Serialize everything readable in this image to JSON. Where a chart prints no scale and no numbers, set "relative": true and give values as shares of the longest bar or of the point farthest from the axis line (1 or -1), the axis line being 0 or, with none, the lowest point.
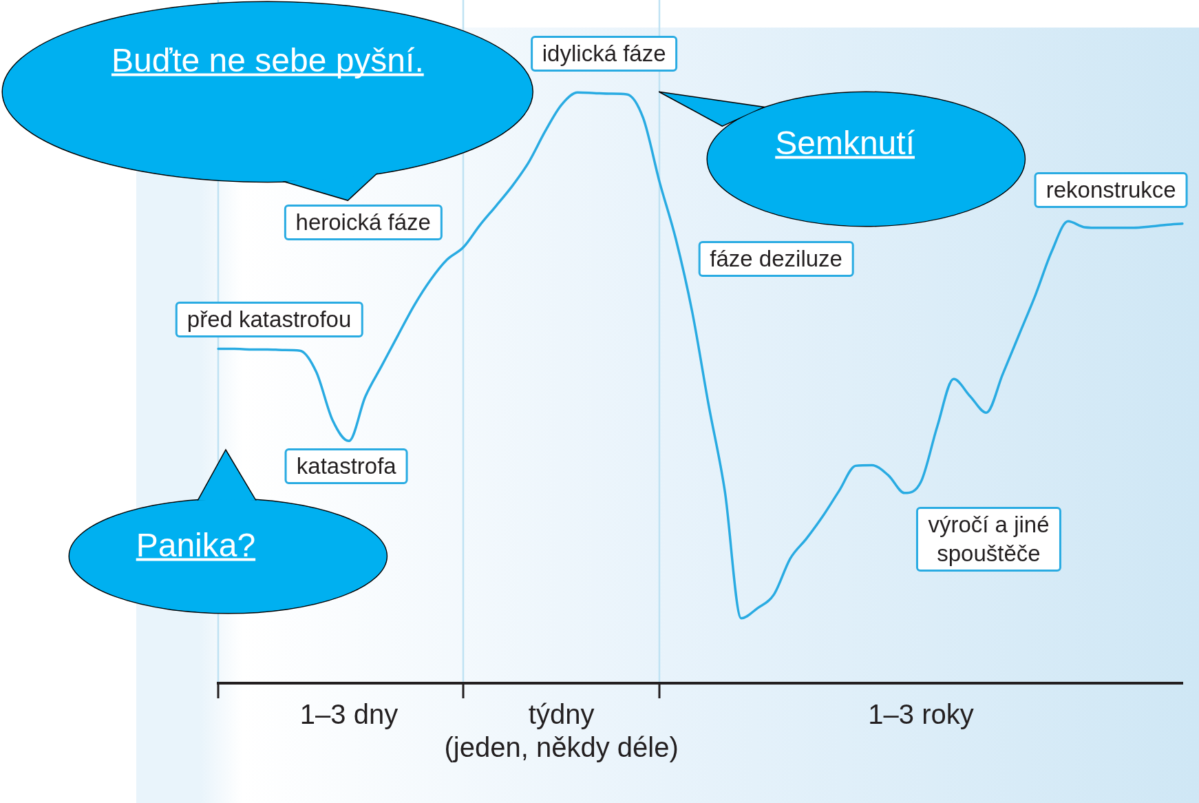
{
  "chart_data": {
    "type": "line",
    "relative": true,
    "legend": false,
    "grid": false,
    "marker": "none",
    "line_style": "solid",
    "categories": [
      null,
      null,
      null,
      null,
      null,
      null,
      null,
      null,
      "1–3 dny",
      null,
      null,
      null,
      null,
      null,
      null,
      null,
      null,
      null,
      null,
      null,
      null,
      "týdny\n(jeden, někdy déle)",
      null,
      null,
      null,
      null,
      null,
      null,
      null,
      null,
      null,
      null,
      null,
      null,
      null,
      null,
      null,
      null,
      null,
      null,
      null,
      null,
      null,
      "1–3 roky",
      null,
      null,
      null,
      null,
      null,
      null,
      null,
      null,
      null,
      null,
      null,
      null,
      null,
      null,
      null,
      null
    ],
    "series": [
      {
        "color": "#29abe2",
        "values": [
          0.566,
          0.566,
          0.565,
          0.565,
          0.564,
          0.563,
          0.527,
          0.445,
          0.41,
          0.485,
          0.537,
          0.589,
          0.64,
          0.683,
          0.717,
          0.738,
          0.775,
          0.808,
          0.842,
          0.882,
          0.934,
          0.979,
          1.0,
          0.999,
          0.998,
          0.997,
          0.957,
          0.849,
          0.752,
          0.629,
          0.472,
          0.325,
          0.11,
          0.127,
          0.15,
          0.211,
          0.245,
          0.283,
          0.326,
          0.368,
          0.369,
          0.352,
          0.322,
          0.341,
          0.435,
          0.515,
          0.486,
          0.458,
          0.523,
          0.59,
          0.657,
          0.731,
          0.782,
          0.772,
          0.771,
          0.771,
          0.771,
          0.773,
          0.776,
          0.778
        ]
      }
    ],
    "annotations": [
      "před katastrofou",
      "katastrofa",
      "heroická fáze",
      "idylická fáze",
      "fáze deziluze",
      "výročí a jiné\nspouštěče",
      "rekonstrukce",
      "Buďte ne sebe pyšní.",
      "Semknutí",
      "Panika?"
    ]
  }
}
